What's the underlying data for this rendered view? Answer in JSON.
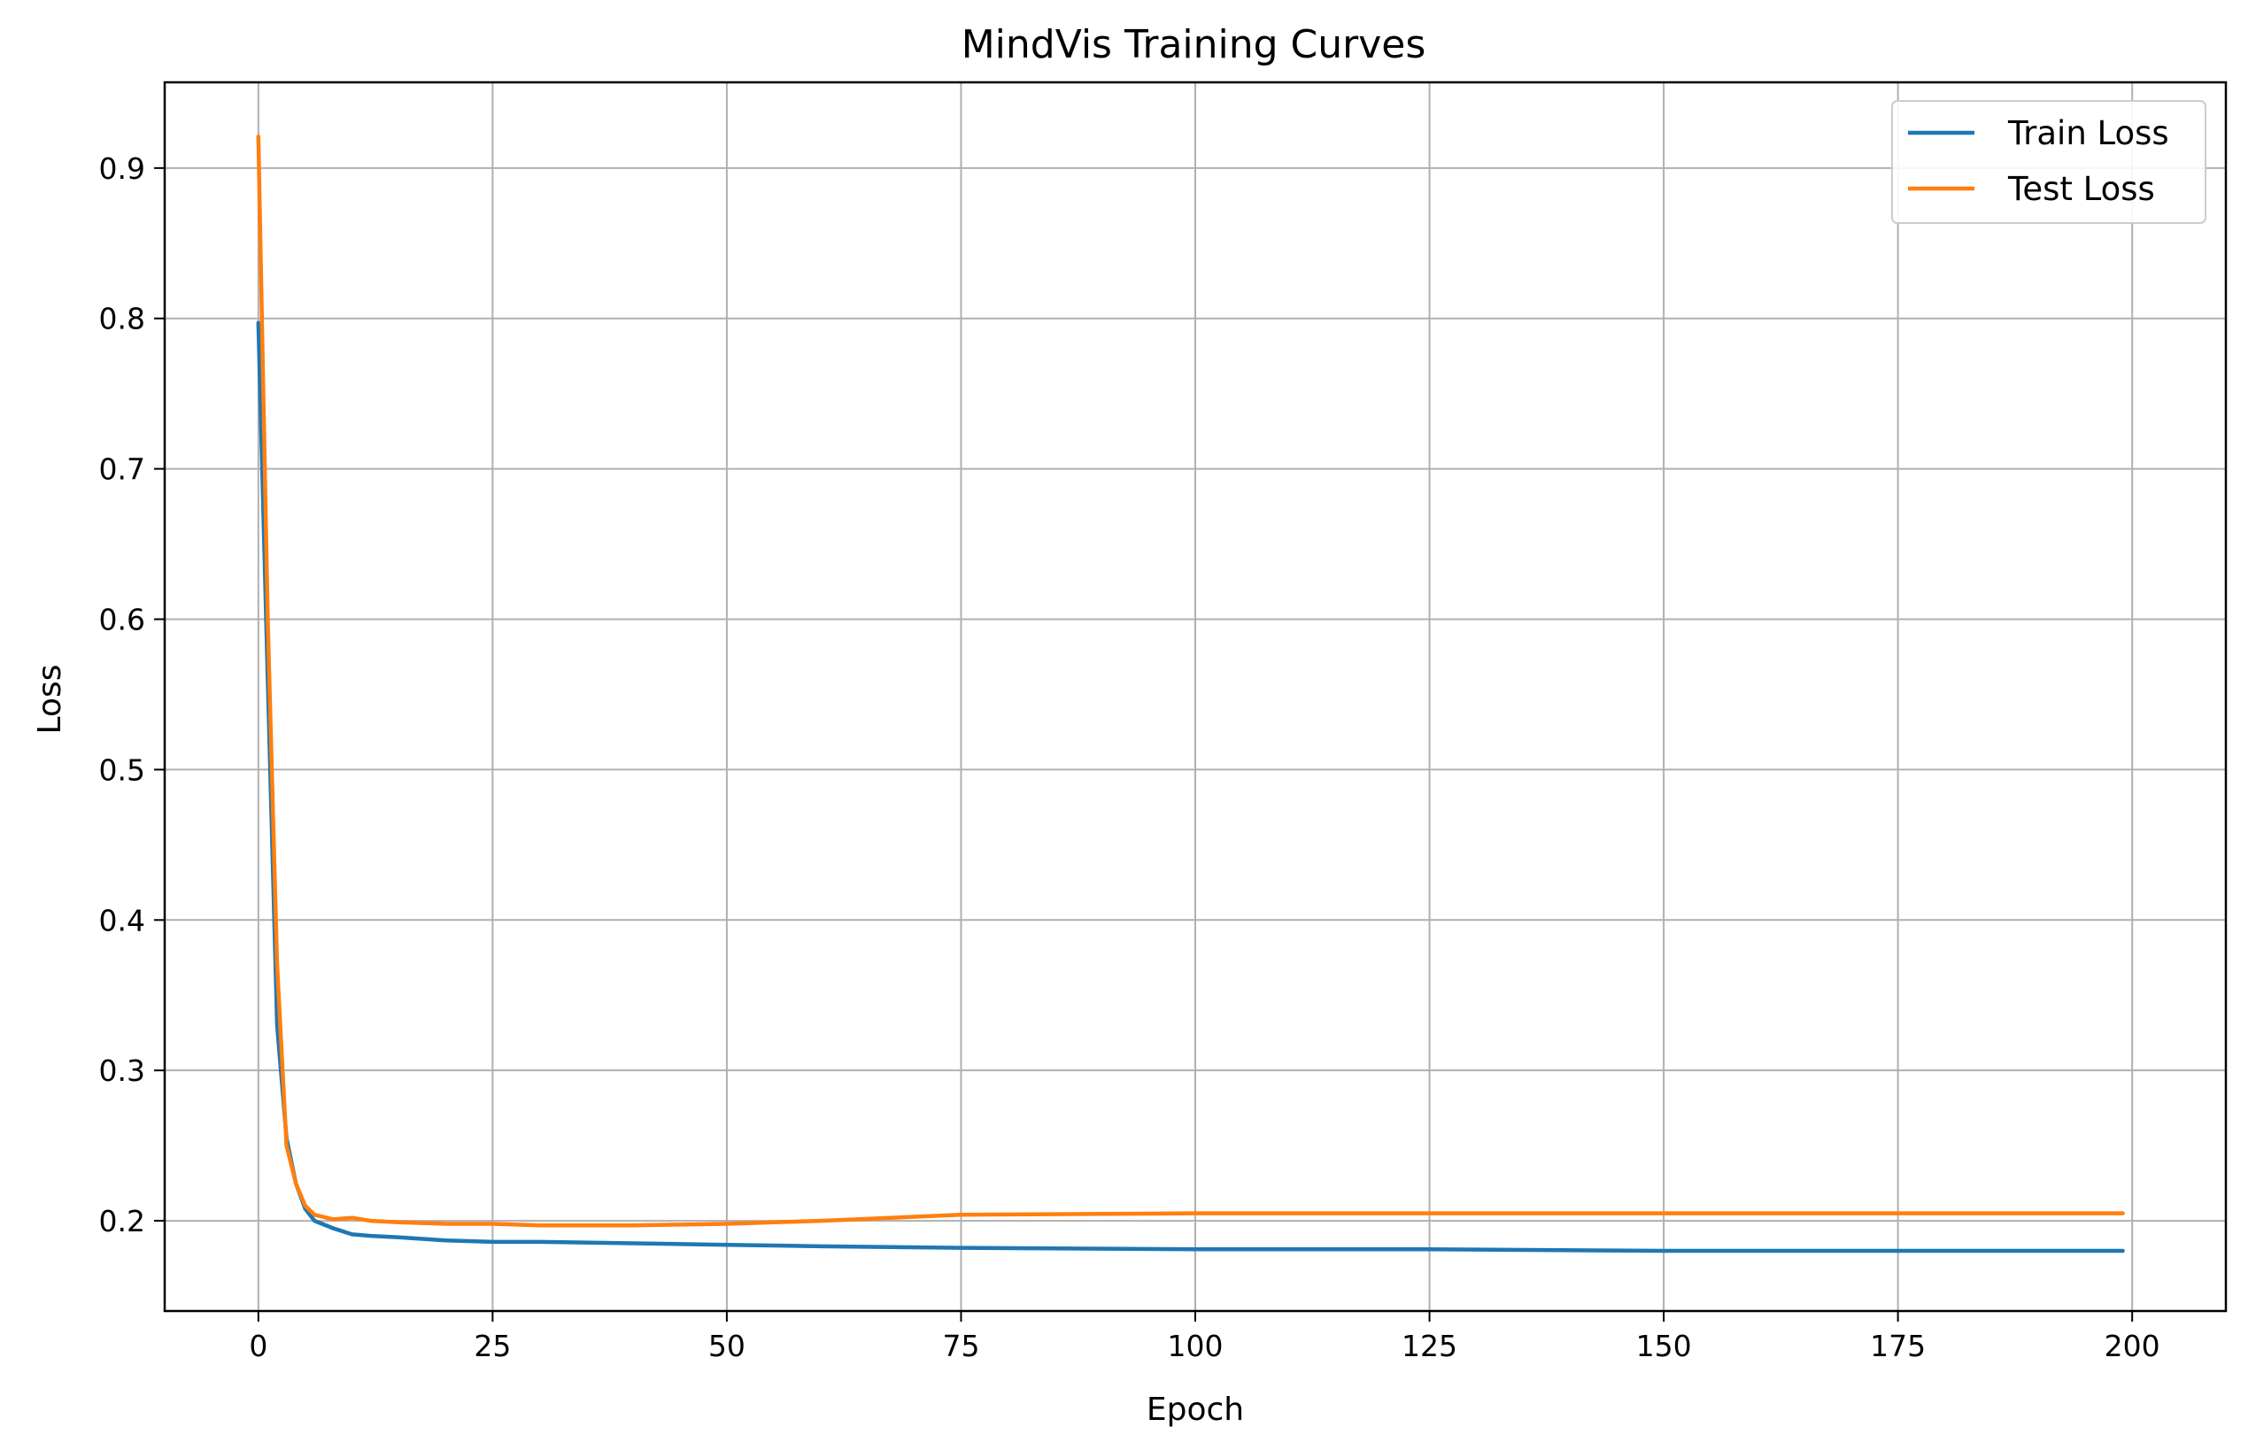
{
  "chart_data": {
    "type": "line",
    "title": "MindVis Training Curves",
    "xlabel": "Epoch",
    "ylabel": "Loss",
    "xlim": [
      -10,
      210
    ],
    "ylim": [
      0.14,
      0.957
    ],
    "xticks": [
      0,
      25,
      50,
      75,
      100,
      125,
      150,
      175,
      200
    ],
    "yticks": [
      0.2,
      0.3,
      0.4,
      0.5,
      0.6,
      0.7,
      0.8,
      0.9
    ],
    "ytick_labels": [
      "0.2",
      "0.3",
      "0.4",
      "0.5",
      "0.6",
      "0.7",
      "0.8",
      "0.9"
    ],
    "grid": true,
    "legend_position": "top-right",
    "series": [
      {
        "name": "Train Loss",
        "color": "#1f77b4",
        "x": [
          0,
          1,
          2,
          3,
          4,
          5,
          6,
          8,
          10,
          12,
          15,
          20,
          25,
          30,
          40,
          50,
          60,
          75,
          100,
          125,
          150,
          175,
          199
        ],
        "y": [
          0.797,
          0.56,
          0.33,
          0.255,
          0.225,
          0.208,
          0.2,
          0.195,
          0.191,
          0.19,
          0.189,
          0.187,
          0.186,
          0.186,
          0.185,
          0.184,
          0.183,
          0.182,
          0.181,
          0.181,
          0.18,
          0.18,
          0.18
        ]
      },
      {
        "name": "Test Loss",
        "color": "#ff7f0e",
        "x": [
          0,
          1,
          2,
          3,
          4,
          5,
          6,
          8,
          10,
          12,
          15,
          20,
          25,
          30,
          40,
          50,
          60,
          75,
          100,
          125,
          150,
          175,
          199
        ],
        "y": [
          0.921,
          0.6,
          0.37,
          0.25,
          0.225,
          0.21,
          0.204,
          0.201,
          0.202,
          0.2,
          0.199,
          0.198,
          0.198,
          0.197,
          0.197,
          0.198,
          0.2,
          0.204,
          0.205,
          0.205,
          0.205,
          0.205,
          0.205
        ]
      }
    ]
  }
}
